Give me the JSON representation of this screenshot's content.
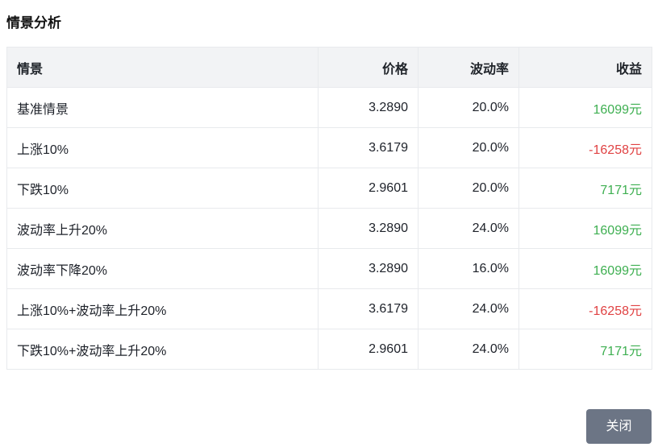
{
  "page": {
    "title": "情景分析"
  },
  "table": {
    "columns": [
      {
        "key": "scenario",
        "label": "情景",
        "align": "left"
      },
      {
        "key": "price",
        "label": "价格",
        "align": "right"
      },
      {
        "key": "volatility",
        "label": "波动率",
        "align": "right"
      },
      {
        "key": "profit",
        "label": "收益",
        "align": "right"
      }
    ],
    "rows": [
      {
        "scenario": "基准情景",
        "price": "3.2890",
        "volatility": "20.0%",
        "profit": "16099元",
        "profit_state": "positive"
      },
      {
        "scenario": "上涨10%",
        "price": "3.6179",
        "volatility": "20.0%",
        "profit": "-16258元",
        "profit_state": "negative"
      },
      {
        "scenario": "下跌10%",
        "price": "2.9601",
        "volatility": "20.0%",
        "profit": "7171元",
        "profit_state": "positive"
      },
      {
        "scenario": "波动率上升20%",
        "price": "3.2890",
        "volatility": "24.0%",
        "profit": "16099元",
        "profit_state": "positive"
      },
      {
        "scenario": "波动率下降20%",
        "price": "3.2890",
        "volatility": "16.0%",
        "profit": "16099元",
        "profit_state": "positive"
      },
      {
        "scenario": "上涨10%+波动率上升20%",
        "price": "3.6179",
        "volatility": "24.0%",
        "profit": "-16258元",
        "profit_state": "negative"
      },
      {
        "scenario": "下跌10%+波动率上升20%",
        "price": "2.9601",
        "volatility": "24.0%",
        "profit": "7171元",
        "profit_state": "positive"
      }
    ]
  },
  "footer": {
    "close_label": "关闭"
  },
  "colors": {
    "positive_green": "#3eaf51",
    "negative_red": "#e04243",
    "header_bg": "#f2f3f5",
    "border": "#e8eaed",
    "button_bg": "#6c7585",
    "button_text": "#ffffff"
  }
}
